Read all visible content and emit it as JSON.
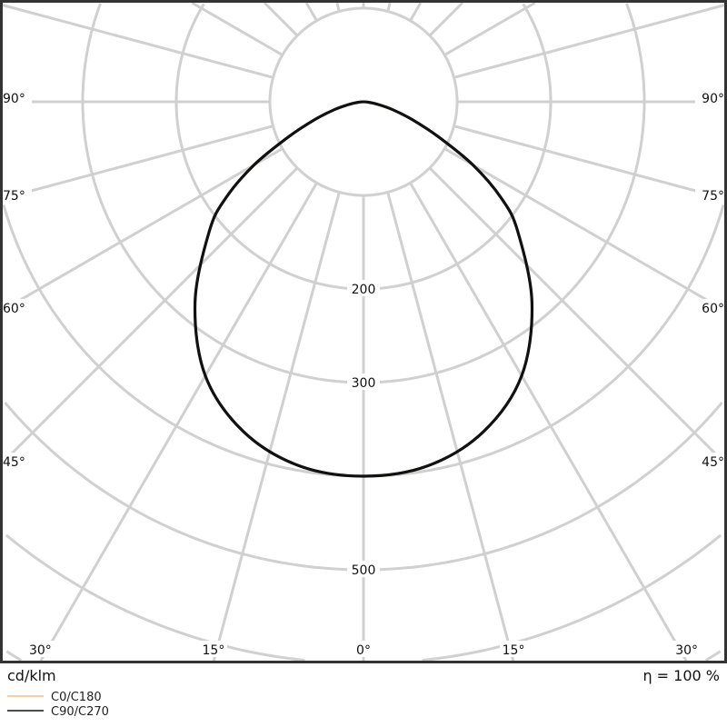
{
  "chart_data": {
    "type": "polar-line",
    "unit_label": "cd/klm",
    "efficiency_label": "η = 100 %",
    "radial_ticks": [
      100,
      200,
      300,
      400,
      500,
      600,
      700
    ],
    "radial_tick_labels": [
      "200",
      "300",
      "500"
    ],
    "radial_tick_label_values": [
      200,
      300,
      500
    ],
    "angle_grid_step_deg": 15,
    "angle_labels_side": [
      "90°",
      "75°",
      "60°",
      "45°"
    ],
    "angle_labels_side_values": [
      90,
      75,
      60,
      45
    ],
    "angle_labels_bottom": [
      "30°",
      "15°",
      "0°",
      "15°",
      "30°"
    ],
    "angle_labels_bottom_values": [
      -30,
      -15,
      0,
      15,
      30
    ],
    "grid": true,
    "legend_placement": "bottom-left",
    "series": [
      {
        "name": "C0/C180",
        "color": "#f5c08a",
        "angles": [
          0,
          10,
          20,
          30,
          40,
          50,
          55,
          60,
          65,
          70,
          75,
          80,
          85,
          90
        ],
        "values": [
          400,
          395,
          375,
          338,
          280,
          215,
          180,
          135,
          88,
          55,
          32,
          15,
          5,
          0
        ]
      },
      {
        "name": "C90/C270",
        "color": "#111111",
        "angles": [
          0,
          10,
          20,
          30,
          40,
          50,
          55,
          60,
          65,
          70,
          75,
          80,
          85,
          90
        ],
        "values": [
          400,
          395,
          375,
          338,
          280,
          215,
          180,
          135,
          88,
          55,
          32,
          15,
          5,
          0
        ]
      }
    ]
  }
}
